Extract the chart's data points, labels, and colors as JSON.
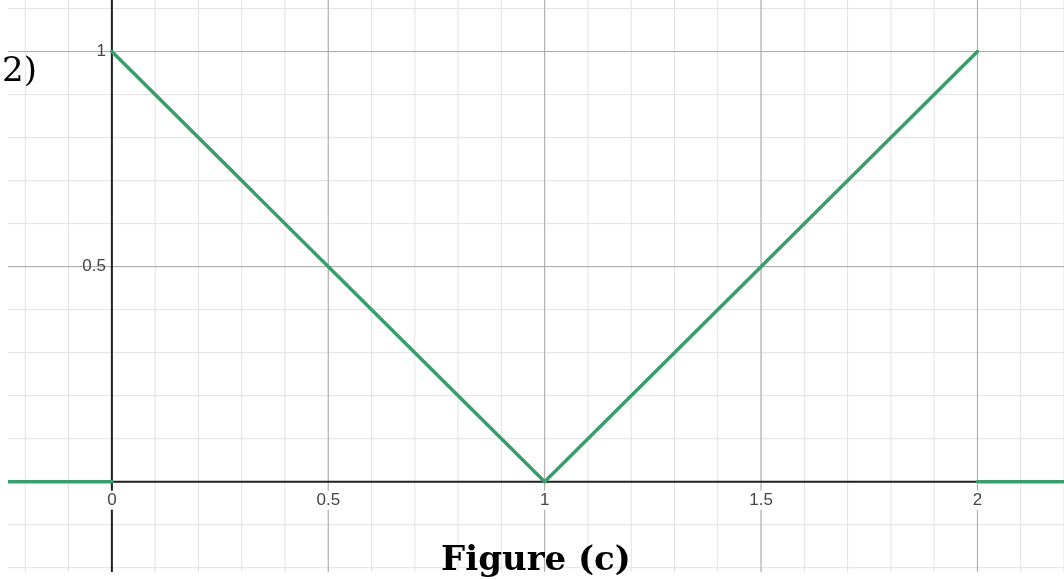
{
  "chart_data": {
    "type": "line",
    "series": [
      {
        "color": "#3a9d6c",
        "x": [
          -0.24,
          0
        ],
        "values": [
          0,
          0
        ]
      },
      {
        "color": "#3a9d6c",
        "x": [
          0,
          1,
          2
        ],
        "values": [
          1,
          0,
          1
        ]
      },
      {
        "color": "#3a9d6c",
        "x": [
          2,
          2.2
        ],
        "values": [
          0,
          0
        ]
      }
    ],
    "xlim": [
      -0.24,
      2.2
    ],
    "ylim": [
      -0.21,
      1.12
    ],
    "xticks": [
      0,
      0.5,
      1,
      1.5,
      2
    ],
    "yticks": [
      {
        "value": 0,
        "label": null
      },
      0.5,
      1
    ],
    "grid": true,
    "legend": false,
    "marker": "none",
    "line_style": "solid",
    "annotations": [
      "2)",
      "Figure (c)"
    ]
  }
}
